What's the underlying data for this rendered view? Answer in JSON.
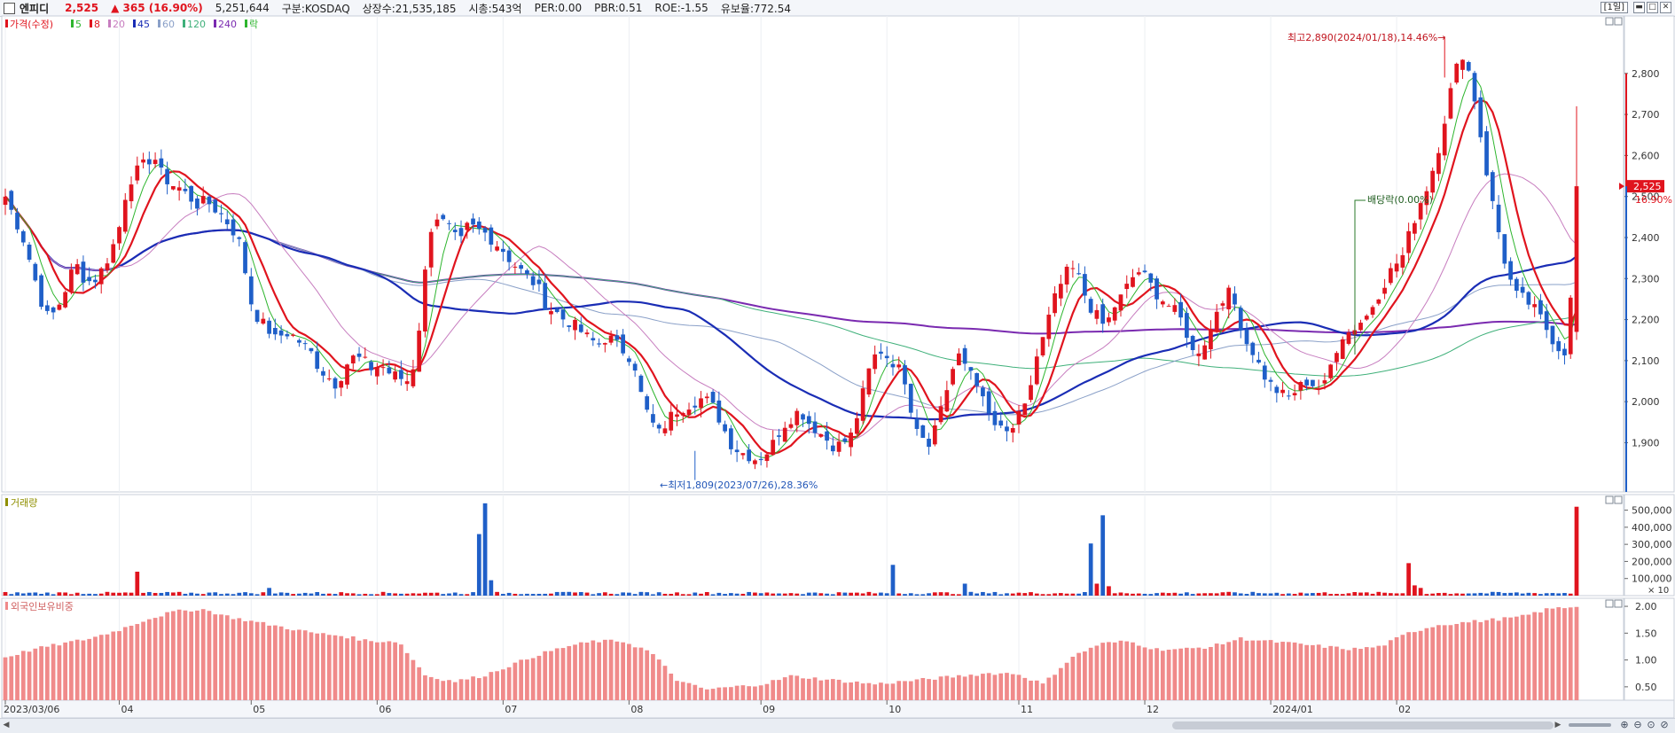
{
  "header": {
    "name": "엔피디",
    "price": "2,525",
    "change": "▲ 365 (16.90%)",
    "volume": "5,251,644",
    "market": "구분:KOSDAQ",
    "shares": "상장수:21,535,185",
    "mcap": "시총:543억",
    "per": "PER:0.00",
    "pbr": "PBR:0.51",
    "roe": "ROE:-1.55",
    "float": "유보율:772.54",
    "period": "[1일]"
  },
  "colors": {
    "up": "#e0141e",
    "down": "#1f5fc8",
    "ma5": "#2eb52e",
    "ma8": "#e0141e",
    "ma20": "#c77dbf",
    "ma45": "#1a2db5",
    "ma60": "#8aa0c8",
    "ma120": "#3fb07a",
    "ma240": "#7a2ab0",
    "foreign": "#f08a8a"
  },
  "chart_data": [
    {
      "type": "candlestick",
      "title": "가격(수정)",
      "legend": [
        {
          "label": "가격(수정)",
          "color": "#e0141e"
        },
        {
          "label": "5",
          "color": "#2eb52e"
        },
        {
          "label": "8",
          "color": "#e0141e"
        },
        {
          "label": "20",
          "color": "#c77dbf"
        },
        {
          "label": "45",
          "color": "#1a2db5"
        },
        {
          "label": "60",
          "color": "#8aa0c8"
        },
        {
          "label": "120",
          "color": "#3fb07a"
        },
        {
          "label": "240",
          "color": "#7a2ab0"
        },
        {
          "label": "락",
          "color": "#2eb52e"
        }
      ],
      "x_ticks": [
        "2023/03/06",
        "04",
        "05",
        "06",
        "07",
        "08",
        "09",
        "10",
        "11",
        "12",
        "2024/01",
        "02"
      ],
      "y_ticks": [
        "2,800",
        "2,700",
        "2,600",
        "2,500",
        "2,400",
        "2,300",
        "2,200",
        "2,100",
        "2,000",
        "1,900"
      ],
      "ylim": [
        1780,
        2940
      ],
      "last_label": "2,525",
      "last_change_label": "16.90%",
      "annotations": {
        "high": "최고2,890(2024/01/18),14.46%→",
        "low": "←최저1,809(2023/07/26),28.36%",
        "dividend": "배당락(0.00%)"
      },
      "close_path": [
        2500,
        2450,
        2400,
        2330,
        2250,
        2200,
        2230,
        2280,
        2340,
        2300,
        2290,
        2320,
        2360,
        2420,
        2530,
        2560,
        2580,
        2600,
        2550,
        2530,
        2520,
        2500,
        2480,
        2490,
        2470,
        2450,
        2420,
        2380,
        2250,
        2200,
        2180,
        2150,
        2170,
        2160,
        2140,
        2120,
        2080,
        2060,
        2040,
        2090,
        2110,
        2100,
        2080,
        2090,
        2070,
        2060,
        2050,
        2100,
        2300,
        2460,
        2440,
        2420,
        2380,
        2430,
        2420,
        2410,
        2390,
        2370,
        2340,
        2320,
        2300,
        2280,
        2230,
        2220,
        2200,
        2190,
        2170,
        2150,
        2140,
        2160,
        2140,
        2120,
        2100,
        2000,
        1950,
        1920,
        1960,
        1980,
        1990,
        2000,
        2010,
        1990,
        1950,
        1900,
        1880,
        1870,
        1860,
        1870,
        1900,
        1940,
        1960,
        1980,
        1950,
        1930,
        1910,
        1890,
        1900,
        1920,
        2000,
        2080,
        2130,
        2110,
        2090,
        2060,
        1960,
        1920,
        1900,
        1980,
        2040,
        2110,
        2090,
        2070,
        2000,
        1950,
        1930,
        1920,
        1960,
        1990,
        2100,
        2160,
        2240,
        2290,
        2330,
        2300,
        2240,
        2210,
        2180,
        2230,
        2260,
        2300,
        2320,
        2290,
        2260,
        2240,
        2220,
        2190,
        2120,
        2130,
        2170,
        2240,
        2270,
        2230,
        2150,
        2120,
        2070,
        2040,
        2020,
        2010,
        2030,
        2050,
        2040,
        2030,
        2100,
        2160,
        2170,
        2190,
        2210,
        2250,
        2290,
        2330,
        2350,
        2420,
        2480,
        2530,
        2600,
        2700,
        2800,
        2850,
        2780,
        2650,
        2520,
        2420,
        2320,
        2260,
        2250,
        2230,
        2200,
        2160,
        2130,
        2120,
        2525
      ],
      "volume": {
        "label": "거래량",
        "y_ticks": [
          "500,000",
          "400,000",
          "300,000",
          "200,000",
          "100,000"
        ],
        "unit": "× 10",
        "ylim": [
          0,
          560000
        ],
        "spikes": [
          {
            "i": 22,
            "v": 140000
          },
          {
            "i": 44,
            "v": 45000
          },
          {
            "i": 79,
            "v": 360000
          },
          {
            "i": 80,
            "v": 540000
          },
          {
            "i": 81,
            "v": 90000
          },
          {
            "i": 115,
            "v": 18000
          },
          {
            "i": 148,
            "v": 180000
          },
          {
            "i": 160,
            "v": 70000
          },
          {
            "i": 181,
            "v": 305000
          },
          {
            "i": 182,
            "v": 70000
          },
          {
            "i": 183,
            "v": 470000
          },
          {
            "i": 184,
            "v": 55000
          },
          {
            "i": 234,
            "v": 190000
          },
          {
            "i": 235,
            "v": 60000
          },
          {
            "i": 236,
            "v": 45000
          },
          {
            "i": 262,
            "v": 520000
          }
        ]
      },
      "foreign": {
        "label": "외국인보유비중",
        "y_ticks": [
          "2.00",
          "1.50",
          "1.00",
          "0.50"
        ],
        "ylim": [
          0.25,
          2.15
        ],
        "path": [
          1.05,
          1.2,
          1.3,
          1.4,
          1.55,
          1.75,
          1.9,
          1.95,
          1.8,
          1.7,
          1.6,
          1.5,
          1.45,
          1.35,
          1.35,
          0.7,
          0.6,
          0.7,
          0.9,
          1.1,
          1.25,
          1.35,
          1.35,
          1.15,
          0.6,
          0.45,
          0.5,
          0.55,
          0.7,
          0.65,
          0.6,
          0.55,
          0.6,
          0.65,
          0.7,
          0.75,
          0.75,
          0.55,
          1.05,
          1.3,
          1.35,
          1.2,
          1.2,
          1.25,
          1.4,
          1.35,
          1.3,
          1.25,
          1.2,
          1.25,
          1.5,
          1.65,
          1.7,
          1.75,
          1.8,
          1.95,
          2.0
        ]
      }
    }
  ]
}
